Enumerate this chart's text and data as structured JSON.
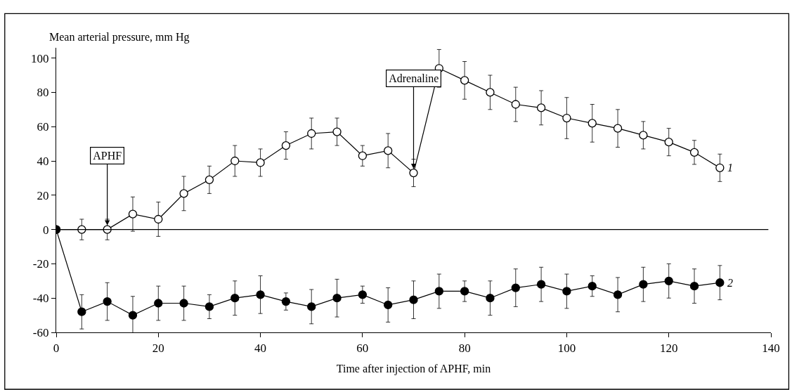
{
  "chart_data": {
    "type": "line",
    "ylabel": "Mean arterial pressure, mm Hg",
    "xlabel": "Time after injection of APHF, min",
    "x": [
      0,
      5,
      10,
      15,
      20,
      25,
      30,
      35,
      40,
      45,
      50,
      55,
      60,
      65,
      70,
      75,
      80,
      85,
      90,
      95,
      100,
      105,
      110,
      115,
      120,
      125,
      130
    ],
    "series": [
      {
        "name": "1",
        "color": "#ffffff",
        "values": [
          0,
          0,
          0,
          9,
          6,
          21,
          29,
          40,
          39,
          49,
          56,
          57,
          43,
          46,
          33,
          94,
          87,
          80,
          73,
          71,
          65,
          62,
          59,
          55,
          51,
          45,
          36
        ],
        "errors": [
          null,
          6,
          6,
          10,
          10,
          10,
          8,
          9,
          8,
          8,
          9,
          8,
          6,
          10,
          8,
          11,
          11,
          10,
          10,
          10,
          12,
          11,
          11,
          8,
          8,
          7,
          8
        ]
      },
      {
        "name": "2",
        "color": "#000000",
        "values": [
          0,
          -48,
          -42,
          -50,
          -43,
          -43,
          -45,
          -40,
          -38,
          -42,
          -45,
          -40,
          -38,
          -44,
          -41,
          -36,
          -36,
          -40,
          -34,
          -32,
          -36,
          -33,
          -38,
          -32,
          -30,
          -33,
          -31
        ],
        "errors": [
          null,
          10,
          11,
          11,
          10,
          10,
          7,
          10,
          11,
          5,
          10,
          11,
          5,
          10,
          11,
          10,
          6,
          10,
          11,
          10,
          10,
          6,
          10,
          10,
          10,
          10,
          10
        ]
      }
    ],
    "annotations": [
      {
        "text": "APHF",
        "x": 10,
        "y": 0
      },
      {
        "text": "Adrenaline",
        "x": 70,
        "y": 33
      }
    ],
    "ref_lines": [
      {
        "axis": "y",
        "value": 0,
        "color": "#000000"
      }
    ],
    "xlim": [
      0,
      140
    ],
    "xticks": [
      0,
      20,
      40,
      60,
      80,
      100,
      120,
      140
    ],
    "ylim": [
      -60,
      106
    ],
    "yticks": [
      -60,
      -40,
      -20,
      0,
      20,
      40,
      60,
      80,
      100
    ],
    "marker": "circle",
    "line_style": "solid",
    "legend": false
  }
}
